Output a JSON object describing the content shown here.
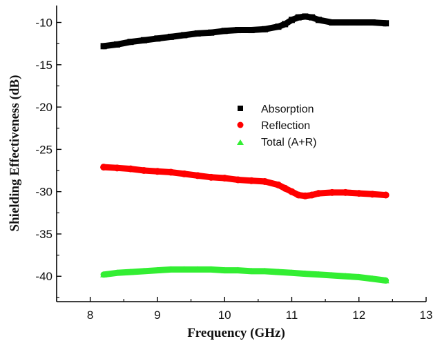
{
  "chart_data": {
    "type": "line",
    "title": "",
    "xlabel": "Frequency (GHz)",
    "ylabel": "Shielding Effectiveness (dB)",
    "xlim": [
      7.5,
      13
    ],
    "ylim": [
      -43,
      -8
    ],
    "x_ticks": [
      "8",
      "9",
      "10",
      "11",
      "12",
      "13"
    ],
    "y_ticks": [
      "-10",
      "-15",
      "-20",
      "-25",
      "-30",
      "-35",
      "-40"
    ],
    "grid": false,
    "legend_position": "center",
    "series": [
      {
        "name": "Absorption",
        "color": "#000000",
        "marker": "square",
        "x": [
          8.2,
          8.4,
          8.6,
          8.8,
          9.0,
          9.2,
          9.4,
          9.6,
          9.8,
          10.0,
          10.2,
          10.4,
          10.6,
          10.8,
          10.9,
          11.0,
          11.1,
          11.2,
          11.3,
          11.4,
          11.6,
          11.8,
          12.0,
          12.2,
          12.4
        ],
        "values": [
          -12.8,
          -12.6,
          -12.3,
          -12.1,
          -11.9,
          -11.7,
          -11.5,
          -11.3,
          -11.2,
          -11.0,
          -10.9,
          -10.9,
          -10.8,
          -10.5,
          -10.2,
          -9.7,
          -9.4,
          -9.3,
          -9.4,
          -9.7,
          -10.0,
          -10.0,
          -10.0,
          -10.0,
          -10.1
        ]
      },
      {
        "name": "Reflection",
        "color": "#ff0000",
        "marker": "circle",
        "x": [
          8.2,
          8.4,
          8.6,
          8.8,
          9.0,
          9.2,
          9.4,
          9.6,
          9.8,
          10.0,
          10.2,
          10.4,
          10.6,
          10.8,
          10.9,
          11.0,
          11.1,
          11.2,
          11.3,
          11.4,
          11.6,
          11.8,
          12.0,
          12.2,
          12.4
        ],
        "values": [
          -27.1,
          -27.2,
          -27.3,
          -27.5,
          -27.6,
          -27.7,
          -27.9,
          -28.1,
          -28.3,
          -28.4,
          -28.6,
          -28.7,
          -28.8,
          -29.2,
          -29.6,
          -30.0,
          -30.4,
          -30.5,
          -30.4,
          -30.2,
          -30.1,
          -30.1,
          -30.2,
          -30.3,
          -30.4
        ]
      },
      {
        "name": "Total (A+R)",
        "color": "#33ee33",
        "marker": "triangle",
        "x": [
          8.2,
          8.4,
          8.6,
          8.8,
          9.0,
          9.2,
          9.4,
          9.6,
          9.8,
          10.0,
          10.2,
          10.4,
          10.6,
          10.8,
          11.0,
          11.2,
          11.4,
          11.6,
          11.8,
          12.0,
          12.2,
          12.4
        ],
        "values": [
          -39.8,
          -39.6,
          -39.5,
          -39.4,
          -39.3,
          -39.2,
          -39.2,
          -39.2,
          -39.2,
          -39.3,
          -39.3,
          -39.4,
          -39.4,
          -39.5,
          -39.6,
          -39.7,
          -39.8,
          -39.9,
          -40.0,
          -40.1,
          -40.3,
          -40.5
        ]
      }
    ]
  }
}
